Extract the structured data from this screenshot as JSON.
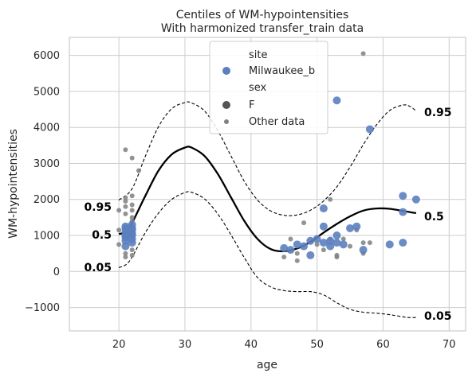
{
  "chart_data": {
    "type": "scatter",
    "title": "Centiles of WM-hypointensities",
    "subtitle": "With harmonized transfer_train data",
    "xlabel": "age",
    "ylabel": "WM-hypointensities",
    "xlim": [
      12.5,
      72.5
    ],
    "ylim": [
      -1650,
      6500
    ],
    "xticks": [
      20,
      30,
      40,
      50,
      60,
      70
    ],
    "yticks": [
      -1000,
      0,
      1000,
      2000,
      3000,
      4000,
      5000,
      6000
    ],
    "grid": true,
    "legend": {
      "placement": "top-center",
      "site_title": "site",
      "site_entry": "Milwaukee_b",
      "sex_title": "sex",
      "sex_entry": "F",
      "other_entry": "Other data"
    },
    "colors": {
      "site_points": "#5b7fbf",
      "other_points": "#808080",
      "curves": "#000000",
      "grid": "#cccccc"
    },
    "centiles": [
      {
        "label": "0.95",
        "style": "dashed",
        "label_left_value": 1800,
        "label_right_value": 4420,
        "points": [
          [
            20,
            1980
          ],
          [
            22,
            2300
          ],
          [
            24,
            3200
          ],
          [
            26,
            4020
          ],
          [
            28,
            4520
          ],
          [
            30,
            4690
          ],
          [
            31,
            4680
          ],
          [
            33,
            4450
          ],
          [
            35,
            3900
          ],
          [
            37,
            3200
          ],
          [
            39,
            2500
          ],
          [
            41,
            1980
          ],
          [
            43,
            1680
          ],
          [
            45,
            1560
          ],
          [
            47,
            1570
          ],
          [
            49,
            1700
          ],
          [
            51,
            1960
          ],
          [
            53,
            2350
          ],
          [
            55,
            2900
          ],
          [
            57,
            3520
          ],
          [
            59,
            4070
          ],
          [
            61,
            4470
          ],
          [
            63,
            4620
          ],
          [
            64,
            4590
          ],
          [
            65,
            4460
          ]
        ]
      },
      {
        "label": "0.5",
        "style": "solid",
        "label_left_value": 1020,
        "label_right_value": 1530,
        "points": [
          [
            20,
            1040
          ],
          [
            21,
            1100
          ],
          [
            22,
            1350
          ],
          [
            24,
            2100
          ],
          [
            26,
            2800
          ],
          [
            28,
            3250
          ],
          [
            30,
            3440
          ],
          [
            31,
            3440
          ],
          [
            33,
            3200
          ],
          [
            35,
            2700
          ],
          [
            37,
            2050
          ],
          [
            39,
            1400
          ],
          [
            41,
            900
          ],
          [
            43,
            620
          ],
          [
            45,
            560
          ],
          [
            47,
            640
          ],
          [
            49,
            820
          ],
          [
            51,
            1080
          ],
          [
            53,
            1320
          ],
          [
            55,
            1530
          ],
          [
            57,
            1690
          ],
          [
            59,
            1750
          ],
          [
            61,
            1740
          ],
          [
            63,
            1680
          ],
          [
            64,
            1650
          ],
          [
            65,
            1620
          ]
        ]
      },
      {
        "label": "0.05",
        "style": "dashed",
        "label_left_value": 120,
        "label_right_value": -1230,
        "points": [
          [
            20,
            110
          ],
          [
            21,
            180
          ],
          [
            22,
            400
          ],
          [
            24,
            1080
          ],
          [
            26,
            1620
          ],
          [
            28,
            2000
          ],
          [
            30,
            2190
          ],
          [
            31,
            2200
          ],
          [
            33,
            2010
          ],
          [
            35,
            1590
          ],
          [
            37,
            1010
          ],
          [
            39,
            380
          ],
          [
            41,
            -170
          ],
          [
            43,
            -430
          ],
          [
            45,
            -530
          ],
          [
            47,
            -560
          ],
          [
            49,
            -560
          ],
          [
            51,
            -650
          ],
          [
            53,
            -870
          ],
          [
            55,
            -1050
          ],
          [
            57,
            -1130
          ],
          [
            59,
            -1160
          ],
          [
            61,
            -1200
          ],
          [
            63,
            -1260
          ],
          [
            64,
            -1280
          ],
          [
            65,
            -1280
          ]
        ]
      }
    ],
    "series": [
      {
        "name": "Milwaukee_b",
        "points": [
          [
            21,
            1200
          ],
          [
            21,
            1100
          ],
          [
            21,
            1000
          ],
          [
            21,
            850
          ],
          [
            21,
            700
          ],
          [
            21,
            950
          ],
          [
            21,
            1250
          ],
          [
            22,
            1300
          ],
          [
            22,
            1150
          ],
          [
            22,
            1050
          ],
          [
            22,
            900
          ],
          [
            22,
            800
          ],
          [
            22,
            1000
          ],
          [
            22,
            1200
          ],
          [
            45,
            650
          ],
          [
            46,
            600
          ],
          [
            47,
            750
          ],
          [
            48,
            700
          ],
          [
            49,
            450
          ],
          [
            49,
            850
          ],
          [
            50,
            900
          ],
          [
            51,
            800
          ],
          [
            51,
            1250
          ],
          [
            51,
            1750
          ],
          [
            52,
            850
          ],
          [
            52,
            700
          ],
          [
            53,
            1000
          ],
          [
            53,
            800
          ],
          [
            53,
            4750
          ],
          [
            54,
            750
          ],
          [
            55,
            1200
          ],
          [
            56,
            1250
          ],
          [
            57,
            600
          ],
          [
            58,
            3950
          ],
          [
            61,
            750
          ],
          [
            63,
            800
          ],
          [
            63,
            1650
          ],
          [
            63,
            2100
          ],
          [
            65,
            2000
          ]
        ]
      },
      {
        "name": "Other data",
        "points": [
          [
            20,
            1700
          ],
          [
            20,
            1150
          ],
          [
            20,
            750
          ],
          [
            21,
            1950
          ],
          [
            21,
            2050
          ],
          [
            21,
            1800
          ],
          [
            21,
            1600
          ],
          [
            21,
            500
          ],
          [
            21,
            400
          ],
          [
            22,
            2100
          ],
          [
            22,
            1850
          ],
          [
            22,
            1700
          ],
          [
            22,
            1500
          ],
          [
            22,
            1400
          ],
          [
            22,
            600
          ],
          [
            22,
            450
          ],
          [
            21,
            3380
          ],
          [
            22,
            3150
          ],
          [
            23,
            2800
          ],
          [
            45,
            400
          ],
          [
            46,
            900
          ],
          [
            47,
            300
          ],
          [
            47,
            500
          ],
          [
            48,
            1350
          ],
          [
            50,
            750
          ],
          [
            51,
            600
          ],
          [
            52,
            2000
          ],
          [
            52,
            900
          ],
          [
            53,
            450
          ],
          [
            53,
            400
          ],
          [
            54,
            900
          ],
          [
            55,
            700
          ],
          [
            56,
            1150
          ],
          [
            57,
            800
          ],
          [
            57,
            500
          ],
          [
            57,
            6050
          ],
          [
            58,
            800
          ]
        ]
      }
    ]
  }
}
